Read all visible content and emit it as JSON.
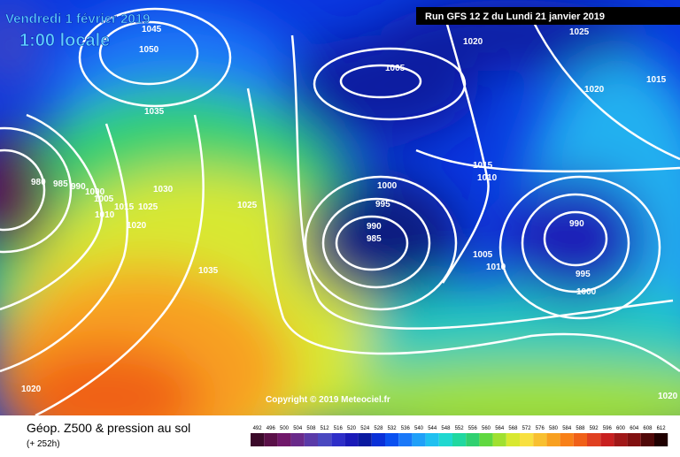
{
  "header": {
    "title": "Vendredi 1 février 2019",
    "time": "1:00 locale",
    "run": "Run GFS 12 Z du Lundi 21 janvier 2019"
  },
  "copyright": "Copyright © 2019 Meteociel.fr",
  "footer": {
    "title": "Géop. Z500 & pression au sol",
    "lead": "(+ 252h)"
  },
  "pressure_labels": [
    1045,
    1050,
    1035,
    1030,
    1025,
    1020,
    1015,
    1010,
    1005,
    1000,
    990,
    985,
    980,
    1025,
    1035,
    1020,
    1005,
    1020,
    1025,
    1015,
    1020,
    1015,
    1010,
    1000,
    995,
    990,
    985,
    1005,
    1010,
    990,
    995,
    1000,
    1020
  ],
  "scale": {
    "values": [
      492,
      496,
      500,
      504,
      508,
      512,
      516,
      520,
      524,
      528,
      532,
      536,
      540,
      544,
      548,
      552,
      556,
      560,
      564,
      568,
      572,
      576,
      580,
      584,
      588,
      592,
      596,
      600,
      604,
      608,
      612
    ],
    "colors": [
      "#3b0a2a",
      "#5a1048",
      "#70186a",
      "#6a2a8a",
      "#5a3aa8",
      "#4a48c0",
      "#2e2ec8",
      "#1a1ab8",
      "#0a1aa0",
      "#0a30d8",
      "#0a50f0",
      "#1a78f8",
      "#20a0f8",
      "#20c0f0",
      "#20d8d0",
      "#20d8a0",
      "#30d070",
      "#60d840",
      "#a0e030",
      "#d8e830",
      "#f8e040",
      "#f8c030",
      "#f8a020",
      "#f88018",
      "#f06018",
      "#e04020",
      "#c82020",
      "#a01818",
      "#801010",
      "#500808",
      "#200000"
    ]
  }
}
